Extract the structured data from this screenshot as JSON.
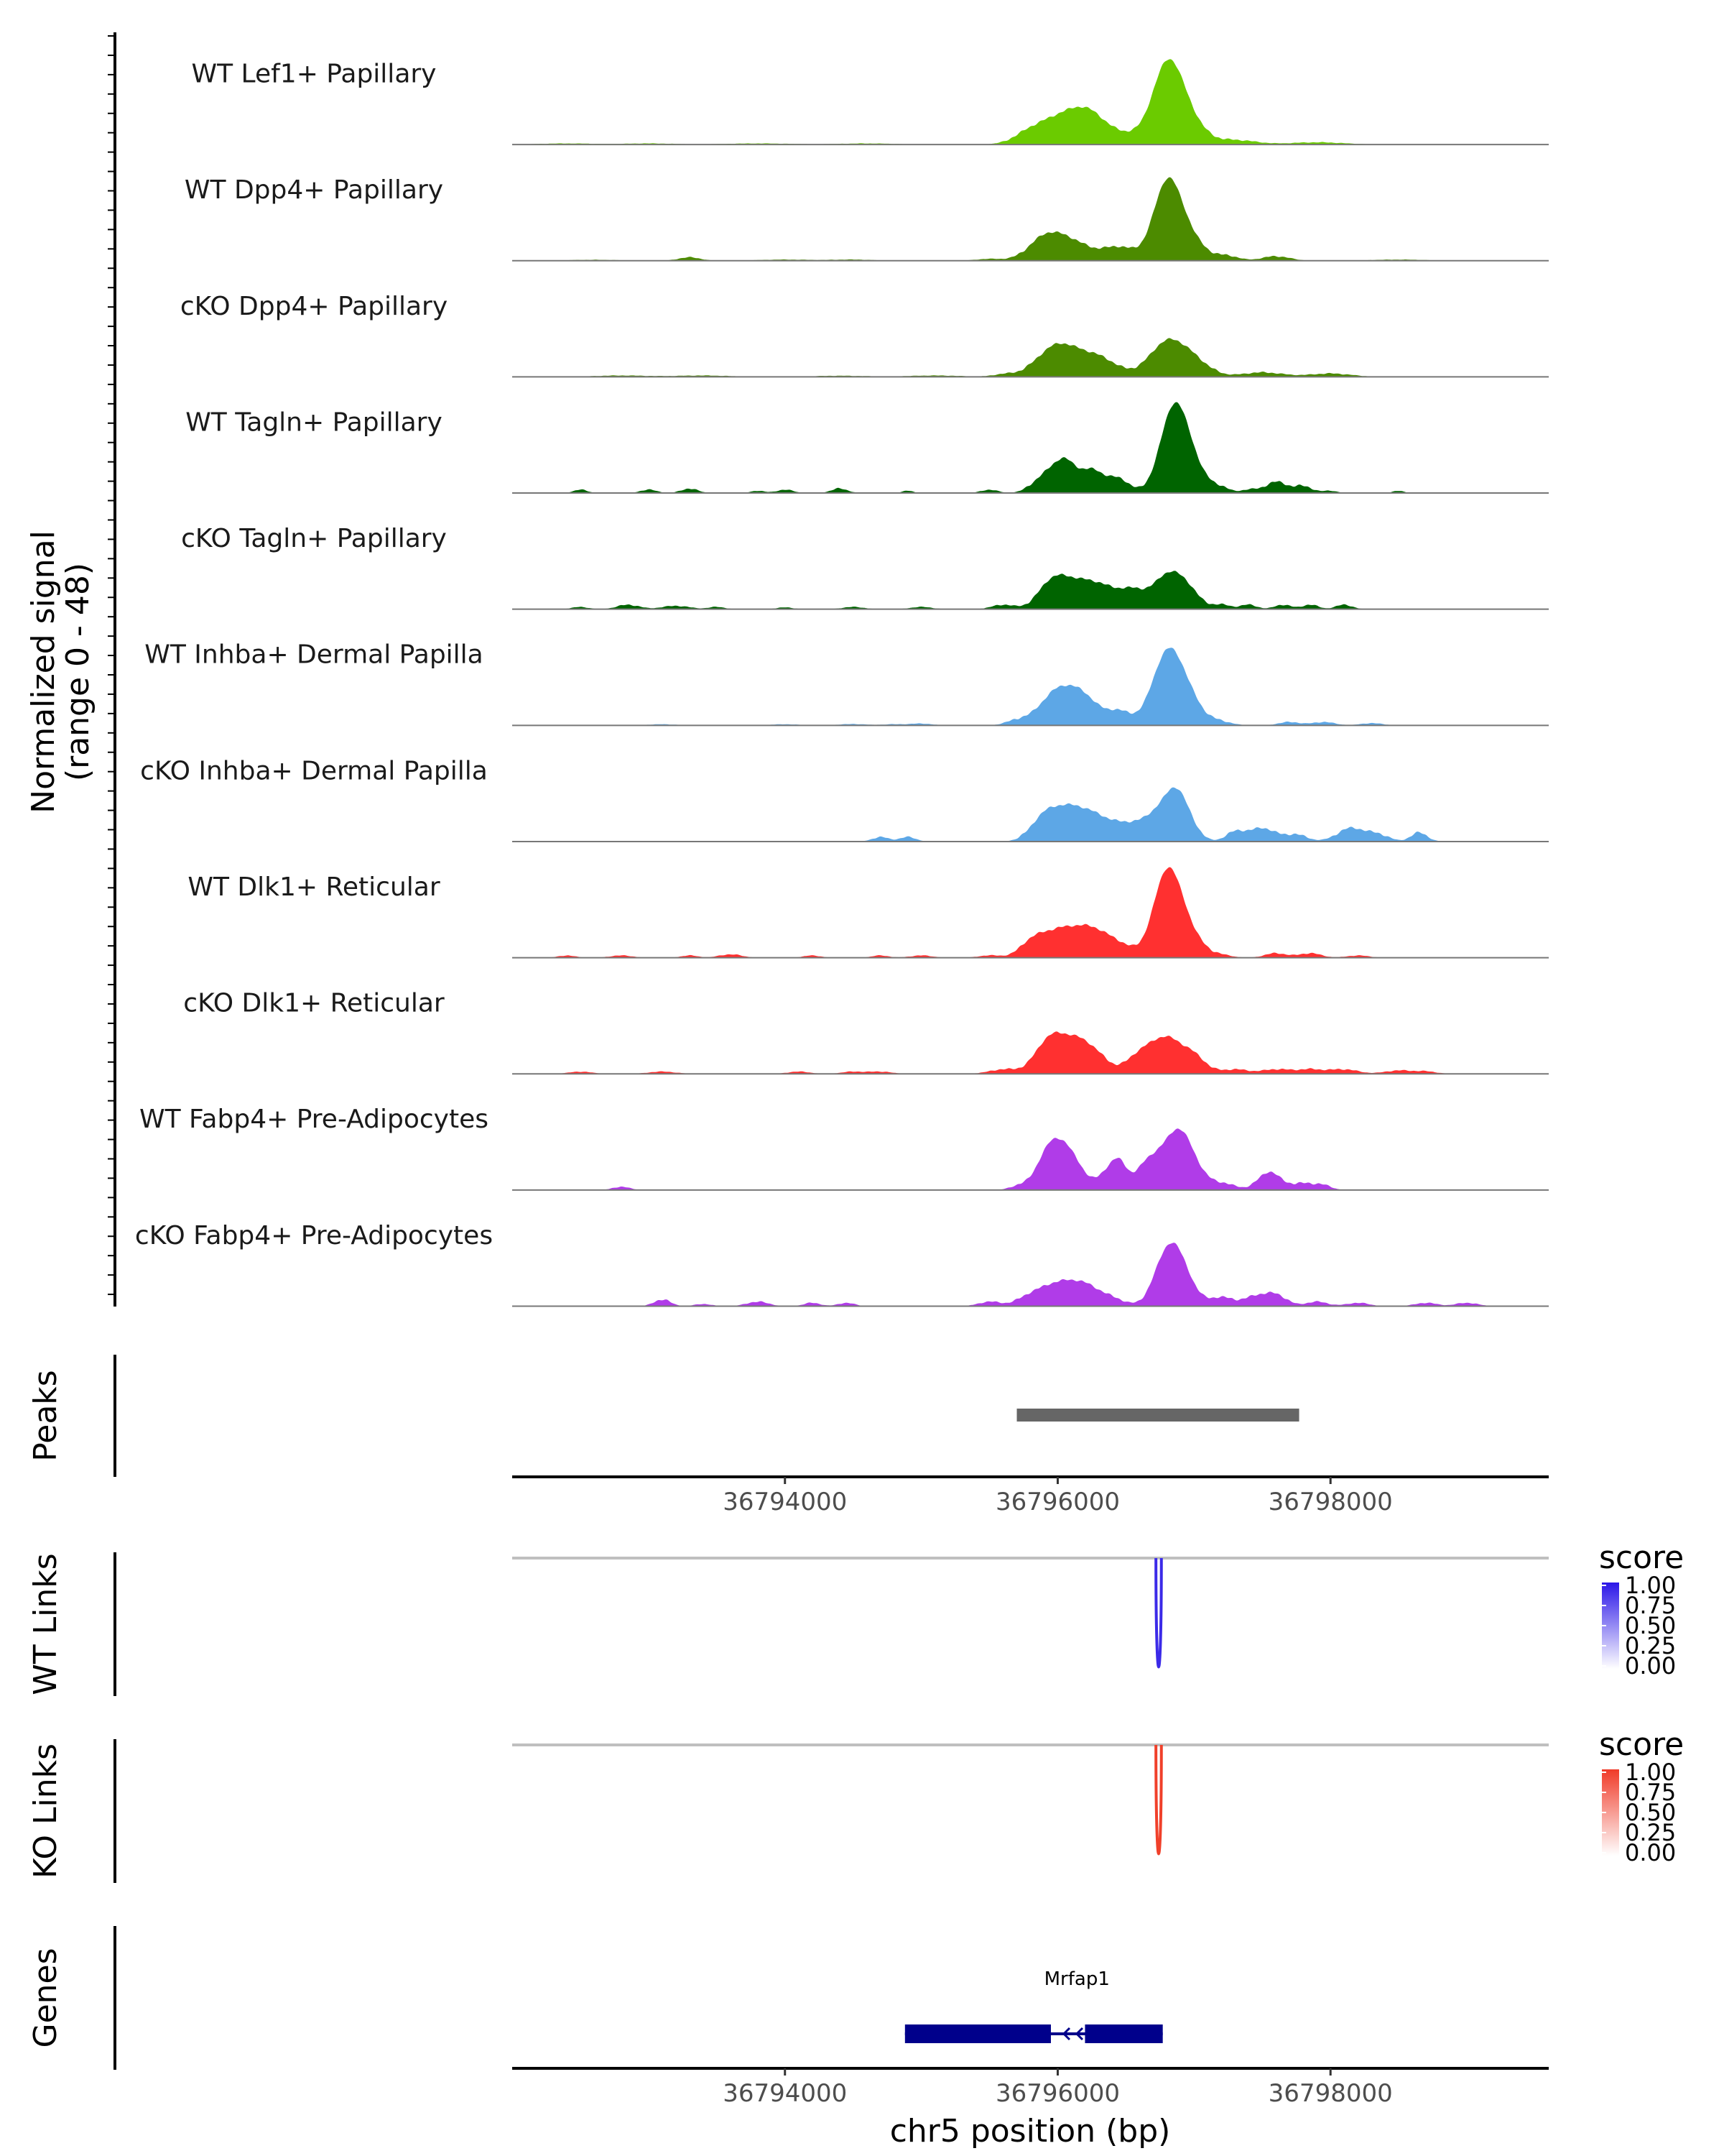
{
  "chart_data": {
    "type": "area",
    "chromosome": "chr5",
    "x_range": [
      36792000,
      36799600
    ],
    "x_ticks": [
      36794000,
      36796000,
      36798000
    ],
    "x_tick_labels": [
      "36794000",
      "36796000",
      "36798000"
    ],
    "xlabel": "chr5 position (bp)",
    "coverage": {
      "ylabel_line1": "Normalized signal",
      "ylabel_line2": "(range 0 - 48)",
      "y_range": [
        0,
        48
      ],
      "tracks": [
        {
          "name": "WT Lef1+ Papillary",
          "color": "#6BCB00",
          "peaks": [
            [
              36792400,
              0.5,
              200
            ],
            [
              36793000,
              0.5,
              180
            ],
            [
              36793800,
              0.5,
              250
            ],
            [
              36794600,
              0.5,
              200
            ],
            [
              36795800,
              5,
              120
            ],
            [
              36796050,
              12,
              150
            ],
            [
              36796250,
              10,
              120
            ],
            [
              36796500,
              4,
              120
            ],
            [
              36796800,
              33,
              110
            ],
            [
              36796950,
              10,
              120
            ],
            [
              36797300,
              2,
              150
            ],
            [
              36797900,
              1,
              200
            ]
          ]
        },
        {
          "name": "WT Dpp4+ Papillary",
          "color": "#4C8B00",
          "peaks": [
            [
              36792600,
              0.4,
              200
            ],
            [
              36793300,
              1.5,
              80
            ],
            [
              36794000,
              0.5,
              200
            ],
            [
              36794500,
              0.5,
              150
            ],
            [
              36795500,
              0.8,
              100
            ],
            [
              36795900,
              9,
              120
            ],
            [
              36796100,
              8,
              140
            ],
            [
              36796450,
              6,
              120
            ],
            [
              36796800,
              32,
              100
            ],
            [
              36796950,
              10,
              120
            ],
            [
              36797250,
              2,
              80
            ],
            [
              36797600,
              2,
              100
            ],
            [
              36798500,
              0.5,
              200
            ]
          ]
        },
        {
          "name": "cKO Dpp4+ Papillary",
          "color": "#4C8B00",
          "peaks": [
            [
              36792800,
              0.6,
              200
            ],
            [
              36793400,
              0.6,
              200
            ],
            [
              36794400,
              0.5,
              200
            ],
            [
              36795100,
              0.6,
              200
            ],
            [
              36795600,
              1,
              80
            ],
            [
              36796000,
              14,
              150
            ],
            [
              36796300,
              8,
              140
            ],
            [
              36796800,
              15,
              130
            ],
            [
              36797000,
              6,
              120
            ],
            [
              36797500,
              2,
              150
            ],
            [
              36798000,
              1.5,
              150
            ]
          ]
        },
        {
          "name": "WT Tagln+ Papillary",
          "color": "#006400",
          "peaks": [
            [
              36792500,
              1.5,
              50
            ],
            [
              36793000,
              1.5,
              60
            ],
            [
              36793300,
              2,
              60
            ],
            [
              36793800,
              1,
              50
            ],
            [
              36794000,
              1.5,
              60
            ],
            [
              36794400,
              2,
              60
            ],
            [
              36794900,
              1,
              40
            ],
            [
              36795500,
              1.5,
              60
            ],
            [
              36795900,
              7,
              90
            ],
            [
              36796050,
              13,
              80
            ],
            [
              36796250,
              10,
              90
            ],
            [
              36796450,
              6,
              80
            ],
            [
              36796850,
              35,
              100
            ],
            [
              36796980,
              10,
              110
            ],
            [
              36797200,
              2,
              60
            ],
            [
              36797400,
              1.5,
              60
            ],
            [
              36797600,
              5,
              80
            ],
            [
              36797800,
              3,
              70
            ],
            [
              36798000,
              1,
              50
            ],
            [
              36798500,
              1,
              40
            ]
          ]
        },
        {
          "name": "cKO Tagln+ Papillary",
          "color": "#006400",
          "peaks": [
            [
              36792500,
              1,
              60
            ],
            [
              36792850,
              2,
              80
            ],
            [
              36793200,
              1.5,
              100
            ],
            [
              36793500,
              1,
              60
            ],
            [
              36794000,
              0.8,
              60
            ],
            [
              36794500,
              1,
              80
            ],
            [
              36795000,
              1,
              80
            ],
            [
              36795600,
              2,
              80
            ],
            [
              36795950,
              9,
              100
            ],
            [
              36796150,
              12,
              150
            ],
            [
              36796350,
              5,
              100
            ],
            [
              36796550,
              8,
              100
            ],
            [
              36796800,
              14,
              100
            ],
            [
              36796950,
              8,
              90
            ],
            [
              36797200,
              2,
              70
            ],
            [
              36797400,
              2,
              60
            ],
            [
              36797650,
              2,
              60
            ],
            [
              36797850,
              2,
              60
            ],
            [
              36798100,
              2,
              60
            ]
          ]
        },
        {
          "name": "WT Inhba+ Dermal Papilla",
          "color": "#5DA7E6",
          "peaks": [
            [
              36793100,
              0.5,
              100
            ],
            [
              36794000,
              0.5,
              100
            ],
            [
              36794500,
              0.6,
              100
            ],
            [
              36794800,
              0.5,
              80
            ],
            [
              36795000,
              0.8,
              80
            ],
            [
              36795700,
              2,
              80
            ],
            [
              36796000,
              15,
              130
            ],
            [
              36796200,
              10,
              110
            ],
            [
              36796450,
              6,
              90
            ],
            [
              36796800,
              30,
              110
            ],
            [
              36796950,
              10,
              110
            ],
            [
              36797200,
              1.5,
              80
            ],
            [
              36797700,
              1.5,
              80
            ],
            [
              36797950,
              1.5,
              80
            ],
            [
              36798300,
              1,
              80
            ]
          ]
        },
        {
          "name": "cKO Inhba+ Dermal Papilla",
          "color": "#5DA7E6",
          "peaks": [
            [
              36794700,
              2,
              60
            ],
            [
              36794900,
              2,
              60
            ],
            [
              36795900,
              10,
              100
            ],
            [
              36796100,
              14,
              120
            ],
            [
              36796300,
              8,
              100
            ],
            [
              36796500,
              7,
              100
            ],
            [
              36796700,
              10,
              90
            ],
            [
              36796850,
              18,
              80
            ],
            [
              36796950,
              8,
              80
            ],
            [
              36797300,
              4,
              70
            ],
            [
              36797500,
              6,
              100
            ],
            [
              36797750,
              3,
              80
            ],
            [
              36798150,
              6,
              100
            ],
            [
              36798350,
              3,
              80
            ],
            [
              36798650,
              4,
              60
            ]
          ]
        },
        {
          "name": "WT Dlk1+ Reticular",
          "color": "#FF3030",
          "peaks": [
            [
              36792400,
              1,
              60
            ],
            [
              36792800,
              1,
              80
            ],
            [
              36793300,
              1,
              60
            ],
            [
              36793600,
              1.5,
              80
            ],
            [
              36794200,
              1,
              60
            ],
            [
              36794700,
              1,
              60
            ],
            [
              36795000,
              1,
              80
            ],
            [
              36795500,
              1,
              80
            ],
            [
              36795800,
              4,
              80
            ],
            [
              36796000,
              12,
              150
            ],
            [
              36796250,
              10,
              120
            ],
            [
              36796450,
              5,
              110
            ],
            [
              36796800,
              36,
              100
            ],
            [
              36796950,
              10,
              110
            ],
            [
              36797200,
              1,
              80
            ],
            [
              36797600,
              2,
              80
            ],
            [
              36797850,
              2,
              80
            ],
            [
              36798200,
              1,
              80
            ]
          ]
        },
        {
          "name": "cKO Dlk1+ Reticular",
          "color": "#FF3030",
          "peaks": [
            [
              36792500,
              1,
              80
            ],
            [
              36793100,
              1,
              100
            ],
            [
              36794100,
              1,
              80
            ],
            [
              36794500,
              1,
              80
            ],
            [
              36794700,
              1,
              80
            ],
            [
              36795600,
              2,
              100
            ],
            [
              36795950,
              16,
              110
            ],
            [
              36796150,
              12,
              100
            ],
            [
              36796300,
              6,
              90
            ],
            [
              36796600,
              8,
              100
            ],
            [
              36796800,
              15,
              110
            ],
            [
              36797000,
              7,
              90
            ],
            [
              36797300,
              2,
              100
            ],
            [
              36797600,
              2,
              100
            ],
            [
              36797850,
              2,
              100
            ],
            [
              36798100,
              2,
              100
            ],
            [
              36798500,
              1.5,
              100
            ],
            [
              36798700,
              1,
              80
            ]
          ]
        },
        {
          "name": "WT Fabp4+ Pre-Adipocytes",
          "color": "#B03CE8",
          "peaks": [
            [
              36792800,
              1.5,
              60
            ],
            [
              36795700,
              1.5,
              60
            ],
            [
              36795950,
              18,
              100
            ],
            [
              36796100,
              12,
              100
            ],
            [
              36796350,
              6,
              60
            ],
            [
              36796450,
              12,
              60
            ],
            [
              36796650,
              10,
              80
            ],
            [
              36796850,
              20,
              110
            ],
            [
              36796950,
              10,
              100
            ],
            [
              36797200,
              3,
              100
            ],
            [
              36797550,
              8,
              80
            ],
            [
              36797800,
              3,
              100
            ],
            [
              36797950,
              1.5,
              60
            ]
          ]
        },
        {
          "name": "cKO Fabp4+ Pre-Adipocytes",
          "color": "#B03CE8",
          "peaks": [
            [
              36793100,
              3,
              60
            ],
            [
              36793400,
              1,
              60
            ],
            [
              36793800,
              2,
              80
            ],
            [
              36794200,
              1.5,
              60
            ],
            [
              36794450,
              1.5,
              60
            ],
            [
              36795500,
              2,
              80
            ],
            [
              36795800,
              4,
              100
            ],
            [
              36796000,
              9,
              120
            ],
            [
              36796200,
              8,
              110
            ],
            [
              36796400,
              3,
              100
            ],
            [
              36796750,
              12,
              80
            ],
            [
              36796850,
              19,
              80
            ],
            [
              36796950,
              8,
              80
            ],
            [
              36797200,
              4,
              100
            ],
            [
              36797450,
              4,
              80
            ],
            [
              36797600,
              5,
              80
            ],
            [
              36797900,
              2,
              80
            ],
            [
              36798200,
              1.5,
              80
            ],
            [
              36798700,
              1.5,
              80
            ],
            [
              36799000,
              1.5,
              80
            ]
          ]
        }
      ]
    },
    "peaks_track": {
      "label": "Peaks",
      "ranges": [
        [
          36795700,
          36797770
        ]
      ],
      "color": "#666666"
    },
    "link_tracks": [
      {
        "label": "WT Links",
        "color": "#3B2AE8",
        "legend": {
          "title": "score",
          "ticks": [
            "1.00",
            "0.75",
            "0.50",
            "0.25",
            "0.00"
          ],
          "high_color": "#2B16E8",
          "low_color": "#FFFFFF"
        },
        "links": [
          {
            "start": 36796720,
            "end": 36796760,
            "score": 1.0
          }
        ]
      },
      {
        "label": "KO Links",
        "color": "#F0402A",
        "legend": {
          "title": "score",
          "ticks": [
            "1.00",
            "0.75",
            "0.50",
            "0.25",
            "0.00"
          ],
          "high_color": "#F03A28",
          "low_color": "#FFFFFF"
        },
        "links": [
          {
            "start": 36796720,
            "end": 36796760,
            "score": 1.0
          }
        ]
      }
    ],
    "genes_track": {
      "label": "Genes",
      "color": "#00008B",
      "genes": [
        {
          "name": "Mrfap1",
          "start": 36794880,
          "end": 36796770,
          "strand": "-",
          "exons": [
            [
              36794880,
              36795950
            ],
            [
              36796200,
              36796770
            ]
          ]
        }
      ]
    }
  }
}
